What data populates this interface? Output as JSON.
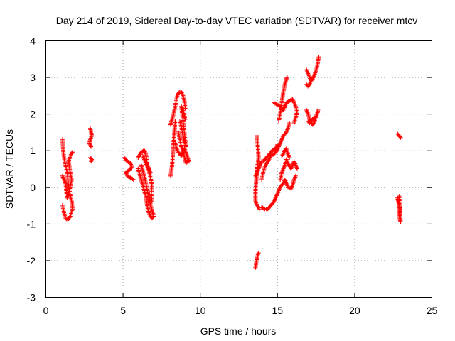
{
  "chart_data": {
    "type": "scatter",
    "title": "Day 214 of 2019, Sidereal Day-to-day VTEC variation (SDTVAR) for receiver mtcv",
    "xlabel": "GPS time / hours",
    "ylabel": "SDTVAR / TECUs",
    "xlim": [
      0,
      25
    ],
    "ylim": [
      -3,
      4
    ],
    "xticks": [
      "0",
      "5",
      "10",
      "15",
      "20",
      "25"
    ],
    "yticks": [
      "-3",
      "-2",
      "-1",
      "0",
      "1",
      "2",
      "3",
      "4"
    ],
    "grid": true,
    "marker": "+",
    "color": "#ff0000",
    "series": [
      {
        "segments": [
          [
            [
              1.1,
              1.3
            ],
            [
              1.15,
              1.0
            ],
            [
              1.2,
              0.8
            ],
            [
              1.3,
              0.6
            ],
            [
              1.4,
              0.4
            ],
            [
              1.45,
              0.2
            ],
            [
              1.5,
              0.0
            ],
            [
              1.6,
              -0.2
            ],
            [
              1.7,
              -0.4
            ],
            [
              1.75,
              -0.6
            ],
            [
              1.6,
              -0.8
            ],
            [
              1.45,
              -0.9
            ],
            [
              1.3,
              -0.85
            ],
            [
              1.2,
              -0.7
            ],
            [
              1.1,
              -0.5
            ]
          ],
          [
            [
              1.1,
              0.3
            ],
            [
              1.2,
              0.2
            ],
            [
              1.3,
              0.1
            ],
            [
              1.35,
              -0.1
            ],
            [
              1.4,
              -0.3
            ],
            [
              1.5,
              -0.2
            ],
            [
              1.6,
              0.0
            ],
            [
              1.7,
              0.2
            ],
            [
              1.6,
              0.4
            ],
            [
              1.5,
              0.7
            ],
            [
              1.6,
              0.85
            ],
            [
              1.75,
              0.95
            ]
          ],
          [
            [
              2.9,
              1.6
            ],
            [
              2.95,
              1.5
            ],
            [
              3.0,
              1.4
            ],
            [
              2.9,
              1.3
            ],
            [
              2.85,
              1.2
            ],
            [
              2.95,
              1.1
            ]
          ],
          [
            [
              2.9,
              0.8
            ],
            [
              3.0,
              0.75
            ],
            [
              2.95,
              0.7
            ]
          ],
          [
            [
              5.1,
              0.8
            ],
            [
              5.3,
              0.7
            ],
            [
              5.5,
              0.65
            ],
            [
              5.6,
              0.55
            ],
            [
              5.4,
              0.45
            ],
            [
              5.2,
              0.4
            ],
            [
              5.3,
              0.3
            ],
            [
              5.5,
              0.25
            ],
            [
              5.7,
              0.2
            ]
          ],
          [
            [
              6.0,
              0.8
            ],
            [
              6.2,
              0.95
            ],
            [
              6.4,
              1.0
            ],
            [
              6.5,
              0.9
            ],
            [
              6.55,
              0.75
            ],
            [
              6.6,
              0.6
            ],
            [
              6.7,
              0.5
            ],
            [
              6.8,
              0.4
            ]
          ],
          [
            [
              6.0,
              0.5
            ],
            [
              6.1,
              0.35
            ],
            [
              6.2,
              0.2
            ],
            [
              6.3,
              0.05
            ],
            [
              6.4,
              -0.1
            ],
            [
              6.5,
              -0.25
            ],
            [
              6.55,
              -0.4
            ],
            [
              6.6,
              -0.55
            ],
            [
              6.7,
              -0.7
            ],
            [
              6.8,
              -0.8
            ],
            [
              6.9,
              -0.85
            ],
            [
              7.0,
              -0.8
            ]
          ],
          [
            [
              6.2,
              0.6
            ],
            [
              6.3,
              0.45
            ],
            [
              6.4,
              0.3
            ],
            [
              6.5,
              0.1
            ],
            [
              6.6,
              -0.1
            ],
            [
              6.7,
              -0.3
            ],
            [
              6.8,
              -0.5
            ],
            [
              6.9,
              -0.65
            ],
            [
              7.0,
              -0.75
            ]
          ],
          [
            [
              6.3,
              0.85
            ],
            [
              6.5,
              0.65
            ],
            [
              6.7,
              0.45
            ],
            [
              6.8,
              0.25
            ],
            [
              6.9,
              0.05
            ],
            [
              6.85,
              -0.2
            ],
            [
              6.9,
              -0.4
            ]
          ],
          [
            [
              8.1,
              1.7
            ],
            [
              8.3,
              2.0
            ],
            [
              8.4,
              2.2
            ],
            [
              8.5,
              2.45
            ],
            [
              8.6,
              2.55
            ],
            [
              8.7,
              2.6
            ],
            [
              8.8,
              2.6
            ],
            [
              8.9,
              2.5
            ],
            [
              9.0,
              2.35
            ],
            [
              9.05,
              2.15
            ]
          ],
          [
            [
              8.1,
              0.3
            ],
            [
              8.2,
              0.6
            ],
            [
              8.25,
              0.9
            ],
            [
              8.3,
              1.2
            ],
            [
              8.35,
              1.5
            ],
            [
              8.4,
              1.8
            ]
          ],
          [
            [
              8.4,
              1.2
            ],
            [
              8.5,
              1.05
            ],
            [
              8.6,
              0.95
            ],
            [
              8.7,
              0.9
            ],
            [
              8.8,
              0.85
            ],
            [
              8.9,
              0.95
            ],
            [
              9.0,
              1.05
            ],
            [
              9.1,
              0.95
            ],
            [
              9.2,
              0.8
            ],
            [
              9.3,
              0.7
            ]
          ],
          [
            [
              8.6,
              1.5
            ],
            [
              8.7,
              1.3
            ],
            [
              8.8,
              1.1
            ],
            [
              8.9,
              1.0
            ],
            [
              9.0,
              0.8
            ],
            [
              9.1,
              0.65
            ],
            [
              9.2,
              0.7
            ]
          ],
          [
            [
              8.7,
              1.8
            ],
            [
              8.8,
              1.65
            ],
            [
              8.9,
              1.4
            ],
            [
              9.0,
              1.25
            ],
            [
              9.1,
              1.1
            ],
            [
              8.8,
              2.2
            ],
            [
              8.95,
              2.05
            ],
            [
              9.05,
              1.85
            ]
          ],
          [
            [
              13.6,
              -2.2
            ],
            [
              13.65,
              -2.05
            ],
            [
              13.7,
              -1.95
            ],
            [
              13.75,
              -1.85
            ],
            [
              13.8,
              -1.8
            ]
          ],
          [
            [
              13.7,
              1.4
            ],
            [
              13.75,
              1.1
            ],
            [
              13.8,
              0.8
            ],
            [
              13.7,
              0.5
            ],
            [
              13.65,
              0.2
            ],
            [
              13.6,
              -0.1
            ],
            [
              13.6,
              -0.4
            ],
            [
              13.7,
              -0.5
            ],
            [
              13.85,
              -0.6
            ]
          ],
          [
            [
              13.6,
              0.3
            ],
            [
              13.7,
              0.4
            ],
            [
              13.8,
              0.5
            ],
            [
              13.9,
              0.6
            ],
            [
              14.0,
              0.7
            ]
          ],
          [
            [
              14.0,
              -0.55
            ],
            [
              14.2,
              -0.6
            ],
            [
              14.4,
              -0.6
            ],
            [
              14.6,
              -0.5
            ],
            [
              14.8,
              -0.4
            ],
            [
              15.0,
              -0.2
            ],
            [
              15.2,
              0.0
            ],
            [
              15.4,
              0.1
            ],
            [
              15.5,
              0.2
            ],
            [
              15.7,
              0.0
            ],
            [
              15.9,
              -0.05
            ],
            [
              16.0,
              0.05
            ],
            [
              16.1,
              0.2
            ],
            [
              16.2,
              0.3
            ]
          ],
          [
            [
              14.0,
              0.2
            ],
            [
              14.1,
              0.4
            ],
            [
              14.2,
              0.55
            ],
            [
              14.4,
              0.7
            ],
            [
              14.6,
              0.85
            ],
            [
              14.8,
              0.9
            ],
            [
              15.0,
              1.0
            ],
            [
              15.1,
              1.1
            ],
            [
              15.2,
              1.2
            ],
            [
              15.3,
              1.3
            ],
            [
              15.4,
              1.4
            ],
            [
              15.6,
              1.5
            ],
            [
              15.7,
              1.6
            ],
            [
              15.8,
              1.75
            ]
          ],
          [
            [
              14.1,
              0.7
            ],
            [
              14.3,
              0.8
            ],
            [
              14.5,
              0.9
            ],
            [
              14.7,
              1.0
            ],
            [
              14.9,
              1.05
            ],
            [
              15.0,
              1.15
            ]
          ],
          [
            [
              14.8,
              2.3
            ],
            [
              15.0,
              2.25
            ],
            [
              15.2,
              2.2
            ],
            [
              15.4,
              2.1
            ],
            [
              15.6,
              2.3
            ],
            [
              15.8,
              2.35
            ],
            [
              16.0,
              2.4
            ],
            [
              16.2,
              2.2
            ],
            [
              16.3,
              2.05
            ],
            [
              16.2,
              1.9
            ],
            [
              16.1,
              1.75
            ]
          ],
          [
            [
              15.1,
              1.8
            ],
            [
              15.2,
              2.0
            ],
            [
              15.3,
              2.3
            ],
            [
              15.4,
              2.6
            ],
            [
              15.5,
              2.8
            ],
            [
              15.6,
              2.95
            ],
            [
              15.65,
              3.0
            ]
          ],
          [
            [
              15.2,
              0.2
            ],
            [
              15.3,
              0.4
            ],
            [
              15.5,
              0.6
            ],
            [
              15.6,
              0.75
            ],
            [
              15.7,
              0.65
            ],
            [
              15.9,
              0.5
            ],
            [
              16.0,
              0.6
            ],
            [
              16.1,
              0.7
            ],
            [
              16.3,
              0.5
            ]
          ],
          [
            [
              15.3,
              0.85
            ],
            [
              15.4,
              0.9
            ],
            [
              15.5,
              1.0
            ],
            [
              15.6,
              1.05
            ],
            [
              15.7,
              0.9
            ],
            [
              15.8,
              0.8
            ]
          ],
          [
            [
              16.9,
              3.2
            ],
            [
              17.0,
              3.1
            ],
            [
              17.1,
              3.0
            ],
            [
              17.2,
              2.9
            ],
            [
              17.3,
              2.95
            ],
            [
              17.4,
              3.05
            ],
            [
              17.5,
              3.15
            ],
            [
              17.6,
              3.3
            ],
            [
              17.65,
              3.45
            ],
            [
              17.7,
              3.55
            ]
          ],
          [
            [
              16.9,
              2.8
            ],
            [
              17.0,
              2.75
            ],
            [
              17.1,
              2.8
            ],
            [
              17.2,
              2.9
            ]
          ],
          [
            [
              16.9,
              2.1
            ],
            [
              17.0,
              2.0
            ],
            [
              17.1,
              1.85
            ],
            [
              17.2,
              1.75
            ],
            [
              17.3,
              1.7
            ],
            [
              17.4,
              1.75
            ],
            [
              17.5,
              1.9
            ],
            [
              17.6,
              2.0
            ],
            [
              17.65,
              2.1
            ]
          ],
          [
            [
              17.0,
              1.8
            ],
            [
              17.1,
              1.75
            ],
            [
              17.2,
              1.8
            ],
            [
              17.3,
              1.85
            ],
            [
              17.4,
              1.9
            ]
          ],
          [
            [
              22.8,
              1.45
            ],
            [
              22.9,
              1.4
            ],
            [
              23.0,
              1.35
            ]
          ],
          [
            [
              22.8,
              -0.3
            ],
            [
              22.85,
              -0.4
            ],
            [
              22.9,
              -0.5
            ],
            [
              22.95,
              -0.6
            ],
            [
              22.9,
              -0.75
            ],
            [
              22.95,
              -0.9
            ],
            [
              23.0,
              -0.95
            ],
            [
              22.9,
              -0.25
            ]
          ]
        ]
      }
    ]
  }
}
